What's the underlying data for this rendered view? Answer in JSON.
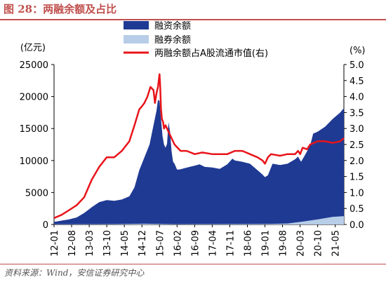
{
  "header": {
    "title": "图 28：两融余额及占比"
  },
  "footer": {
    "source": "资料来源：Wind，安信证券研究中心"
  },
  "colors": {
    "title": "#c0504d",
    "financing": "#1f3a93",
    "securities_lending": "#b7cde8",
    "ratio_line": "#e8141a"
  },
  "chart_data": {
    "type": "area",
    "title": "",
    "left_axis": {
      "unit_label": "(亿元)",
      "ylim": [
        0,
        25000
      ],
      "ticks": [
        0,
        5000,
        10000,
        15000,
        20000,
        25000
      ]
    },
    "right_axis": {
      "unit_label": "(%)",
      "ylim": [
        0,
        5
      ],
      "ticks": [
        "0.0",
        "0.5",
        "1.0",
        "1.5",
        "2.0",
        "2.5",
        "3.0",
        "3.5",
        "4.0",
        "4.5",
        "5.0"
      ]
    },
    "x_tick_labels": [
      "12-01",
      "12-08",
      "13-03",
      "13-10",
      "14-05",
      "14-12",
      "15-07",
      "16-02",
      "16-09",
      "17-04",
      "17-11",
      "18-06",
      "19-01",
      "19-08",
      "20-03",
      "20-10",
      "21-05"
    ],
    "x_tick_positions": [
      2012.0,
      2012.583,
      2013.167,
      2013.75,
      2014.333,
      2014.917,
      2015.5,
      2016.083,
      2016.667,
      2017.25,
      2017.833,
      2018.417,
      2019.0,
      2019.583,
      2020.167,
      2020.75,
      2021.333
    ],
    "xlim": [
      2012.0,
      2021.62
    ],
    "legend_position": "top",
    "series": [
      {
        "name": "融资余额",
        "axis": "left",
        "kind": "area",
        "x": [
          2012.0,
          2012.25,
          2012.5,
          2012.75,
          2013.0,
          2013.25,
          2013.5,
          2013.75,
          2014.0,
          2014.25,
          2014.5,
          2014.67,
          2014.83,
          2015.0,
          2015.17,
          2015.3,
          2015.4,
          2015.45,
          2015.5,
          2015.55,
          2015.6,
          2015.65,
          2015.7,
          2015.75,
          2015.8,
          2015.85,
          2015.9,
          2015.95,
          2016.0,
          2016.08,
          2016.17,
          2016.33,
          2016.5,
          2016.67,
          2016.83,
          2017.0,
          2017.25,
          2017.5,
          2017.75,
          2017.92,
          2018.0,
          2018.25,
          2018.5,
          2018.75,
          2018.92,
          2019.0,
          2019.1,
          2019.25,
          2019.5,
          2019.75,
          2020.0,
          2020.1,
          2020.15,
          2020.2,
          2020.3,
          2020.5,
          2020.6,
          2020.75,
          2021.0,
          2021.25,
          2021.5,
          2021.62
        ],
        "values": [
          400,
          600,
          800,
          1100,
          1800,
          2700,
          3500,
          3800,
          3700,
          3900,
          4400,
          5800,
          8500,
          10500,
          12500,
          15500,
          17800,
          19500,
          19300,
          16500,
          13800,
          12500,
          12000,
          12600,
          16000,
          14500,
          11500,
          9800,
          9500,
          8600,
          8600,
          8800,
          9000,
          9200,
          9400,
          9000,
          8900,
          8700,
          9400,
          10300,
          10000,
          9800,
          9500,
          8500,
          7800,
          7400,
          7700,
          9500,
          9300,
          9500,
          10200,
          10600,
          10200,
          9800,
          10600,
          12300,
          14200,
          14500,
          15300,
          16500,
          17500,
          18200
        ]
      },
      {
        "name": "融券余额",
        "axis": "left",
        "kind": "area",
        "x": [
          2012.0,
          2013.0,
          2014.0,
          2015.0,
          2015.5,
          2016.0,
          2017.0,
          2018.0,
          2019.0,
          2019.75,
          2020.25,
          2020.75,
          2021.25,
          2021.62
        ],
        "values": [
          20,
          40,
          60,
          120,
          90,
          40,
          60,
          70,
          80,
          150,
          450,
          800,
          1200,
          1300
        ]
      },
      {
        "name": "两融余额占A股流通市值(右)",
        "axis": "right",
        "kind": "line",
        "x": [
          2012.0,
          2012.25,
          2012.5,
          2012.75,
          2013.0,
          2013.25,
          2013.5,
          2013.75,
          2014.0,
          2014.25,
          2014.5,
          2014.67,
          2014.83,
          2014.92,
          2015.0,
          2015.1,
          2015.2,
          2015.3,
          2015.35,
          2015.4,
          2015.45,
          2015.5,
          2015.52,
          2015.55,
          2015.58,
          2015.62,
          2015.65,
          2015.7,
          2015.75,
          2015.8,
          2015.9,
          2016.0,
          2016.1,
          2016.2,
          2016.4,
          2016.67,
          2016.92,
          2017.25,
          2017.5,
          2017.75,
          2018.0,
          2018.25,
          2018.5,
          2018.75,
          2018.92,
          2019.0,
          2019.1,
          2019.2,
          2019.5,
          2019.75,
          2020.0,
          2020.1,
          2020.17,
          2020.25,
          2020.4,
          2020.5,
          2020.75,
          2021.0,
          2021.25,
          2021.5,
          2021.62
        ],
        "values": [
          0.2,
          0.3,
          0.45,
          0.6,
          0.85,
          1.4,
          1.8,
          2.1,
          2.1,
          2.3,
          2.6,
          3.1,
          3.6,
          3.7,
          3.8,
          4.0,
          4.3,
          4.2,
          3.8,
          4.1,
          4.3,
          4.7,
          4.4,
          3.6,
          3.3,
          3.2,
          3.0,
          3.1,
          3.0,
          2.9,
          2.7,
          2.5,
          2.4,
          2.3,
          2.3,
          2.2,
          2.25,
          2.2,
          2.2,
          2.2,
          2.3,
          2.3,
          2.2,
          2.1,
          2.0,
          1.9,
          2.1,
          2.2,
          2.15,
          2.2,
          2.2,
          2.3,
          2.2,
          2.4,
          2.35,
          2.5,
          2.6,
          2.6,
          2.55,
          2.6,
          2.7
        ]
      }
    ]
  }
}
